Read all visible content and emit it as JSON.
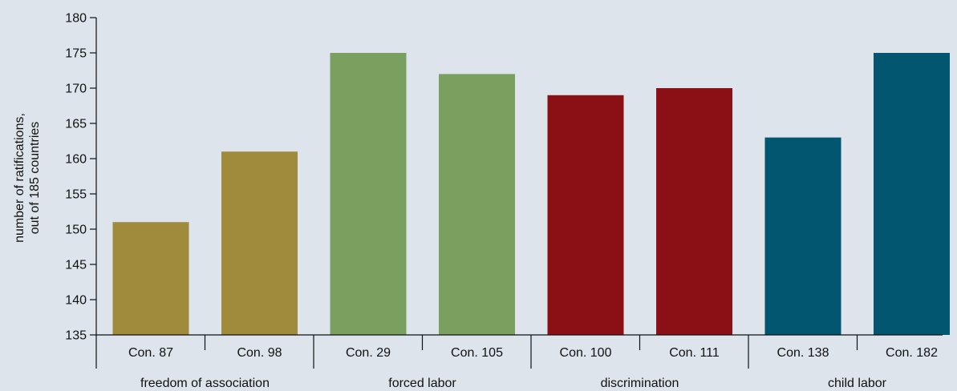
{
  "chart_data": {
    "type": "bar",
    "ylabel": [
      "number of ratifications,",
      "out of 185 countries"
    ],
    "ylim": [
      135,
      180
    ],
    "yticks": [
      135,
      140,
      145,
      150,
      155,
      160,
      165,
      170,
      175,
      180
    ],
    "grid": false,
    "categories": [
      "Con. 87",
      "Con. 98",
      "Con. 29",
      "Con. 105",
      "Con. 100",
      "Con. 111",
      "Con. 138",
      "Con. 182"
    ],
    "values": [
      151,
      161,
      175,
      172,
      169,
      170,
      163,
      175
    ],
    "groups": [
      {
        "label": "freedom of association",
        "categories": [
          "Con. 87",
          "Con. 98"
        ],
        "color": "#a08a3c"
      },
      {
        "label": "forced labor",
        "categories": [
          "Con. 29",
          "Con. 105"
        ],
        "color": "#7aa060"
      },
      {
        "label": "discrimination",
        "categories": [
          "Con. 100",
          "Con. 111"
        ],
        "color": "#8b1015"
      },
      {
        "label": "child labor",
        "categories": [
          "Con. 138",
          "Con. 182"
        ],
        "color": "#03566f"
      }
    ]
  }
}
